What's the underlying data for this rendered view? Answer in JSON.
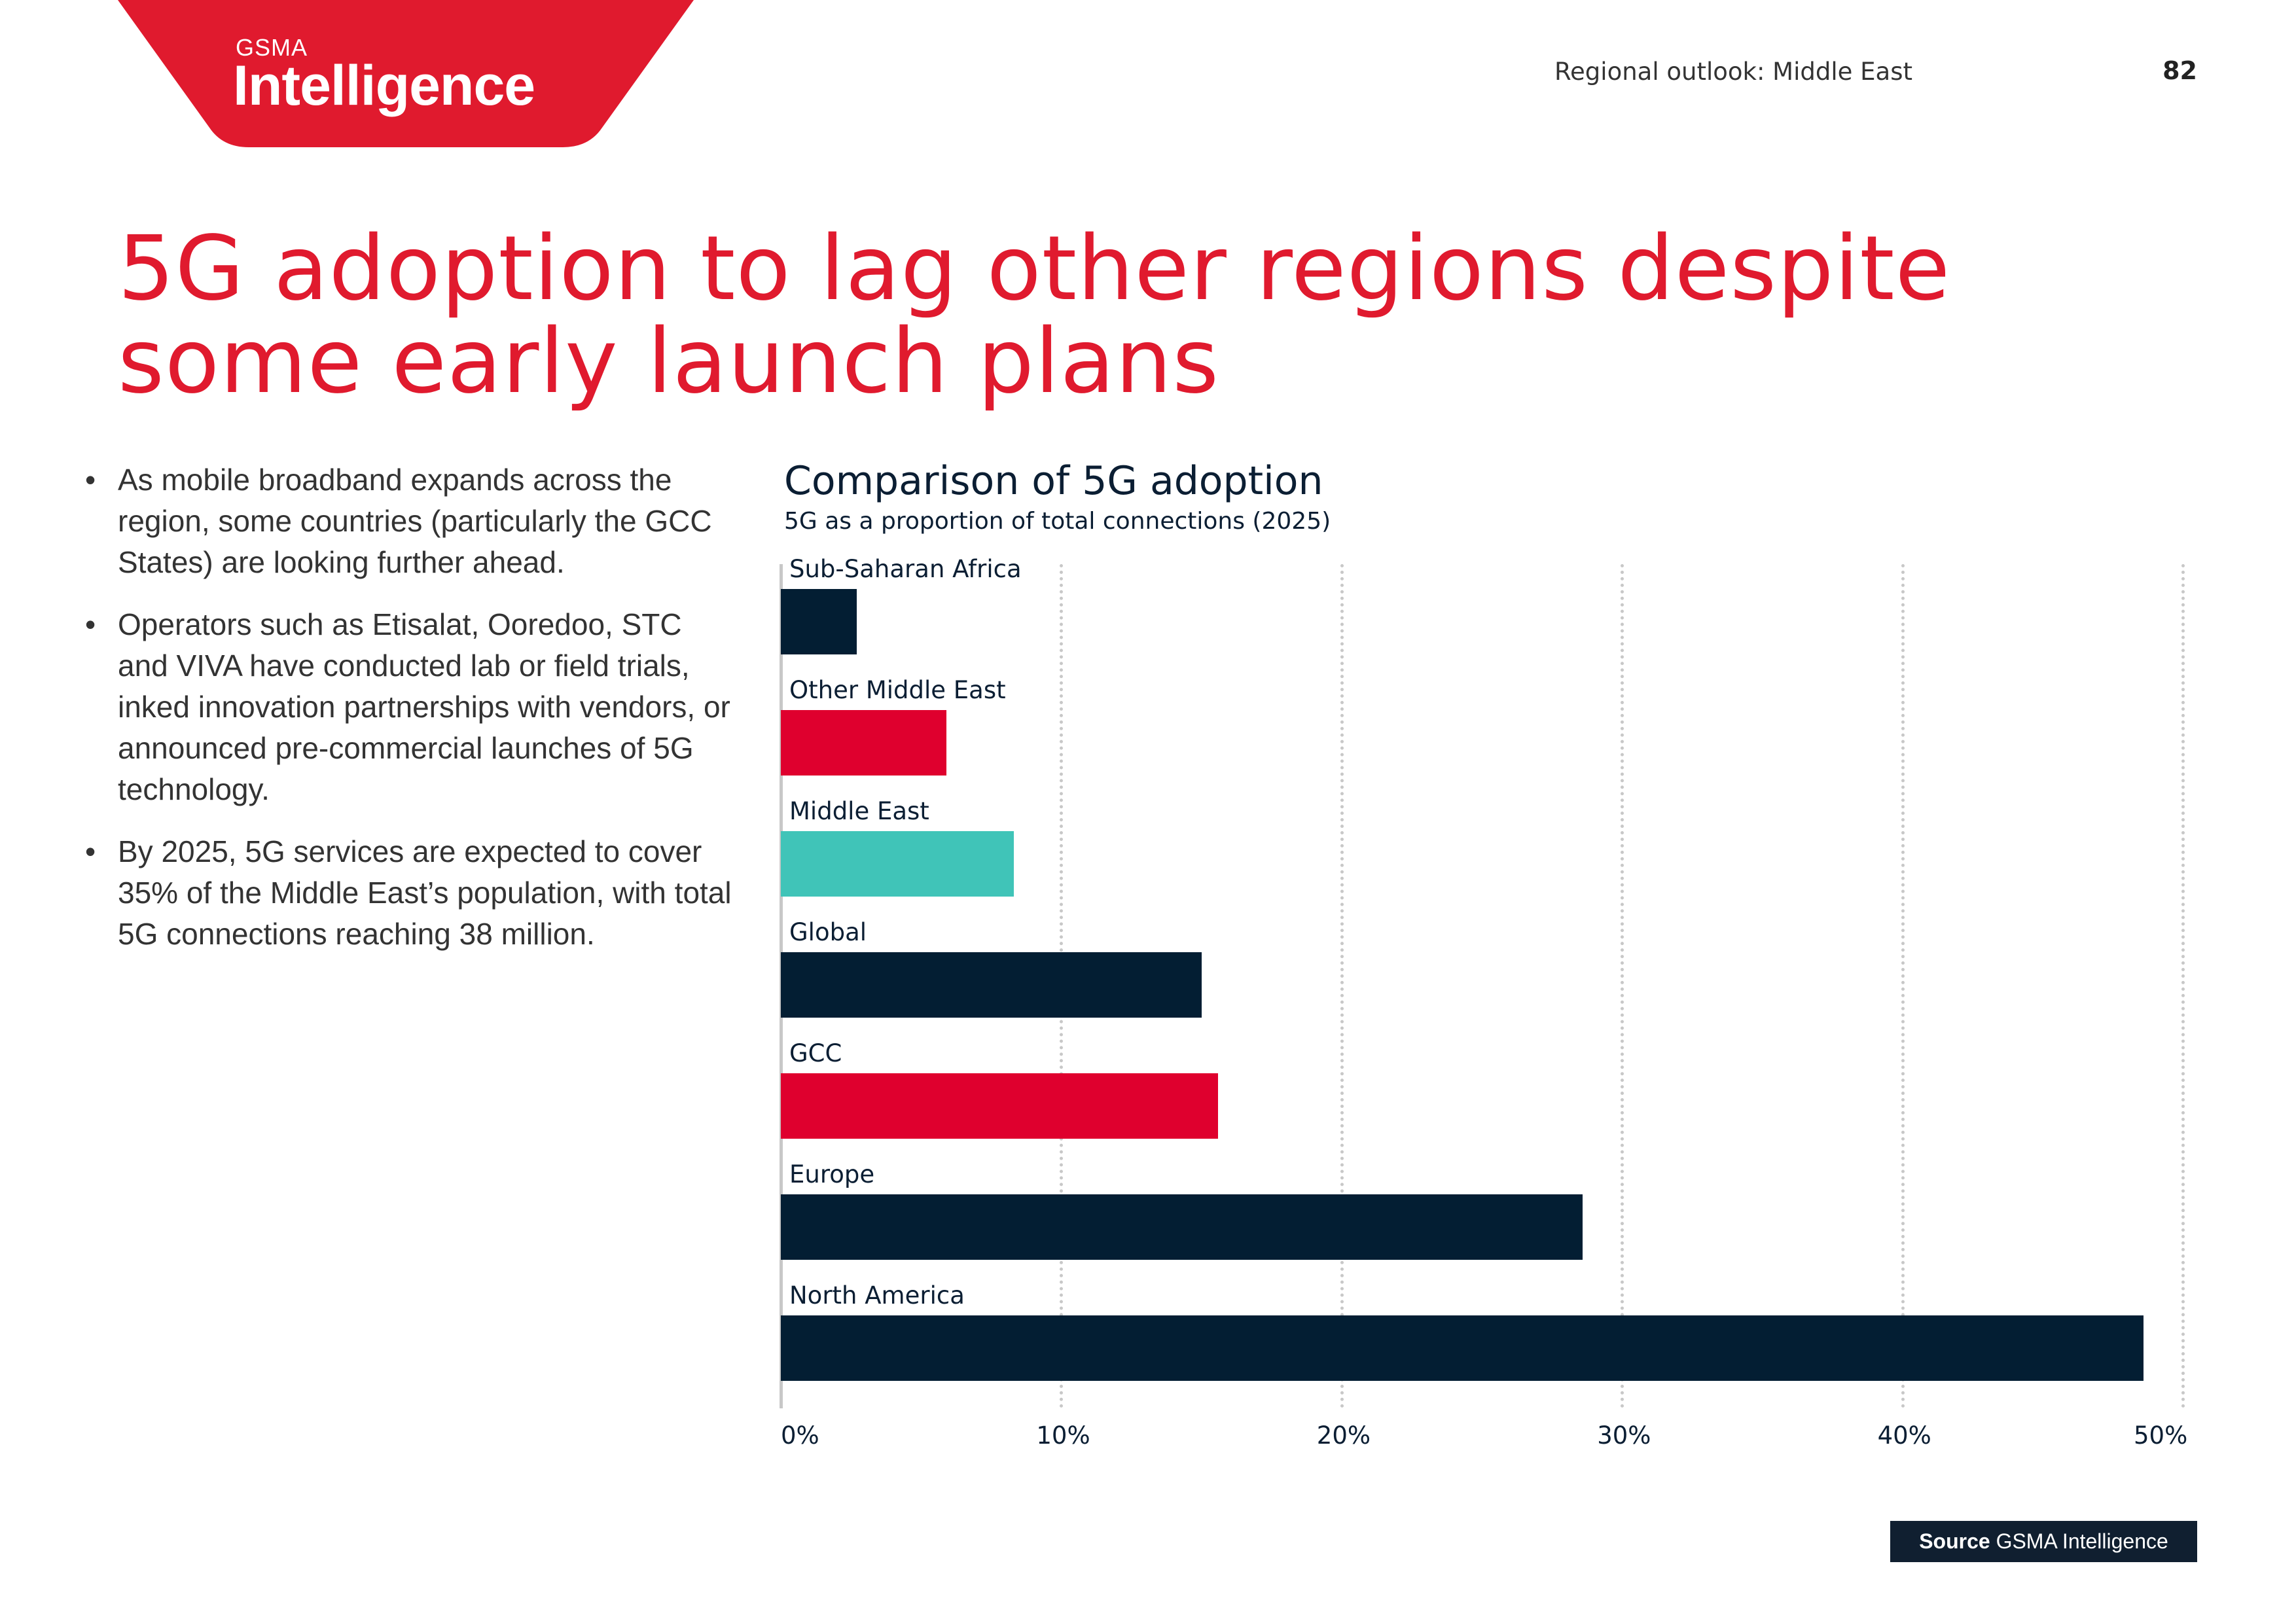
{
  "logo": {
    "line1": "GSMA",
    "line2": "Intelligence",
    "color": "#e01a2e"
  },
  "header": {
    "section": "Regional outlook: Middle East",
    "page_number": "82"
  },
  "title": "5G adoption to lag other regions despite some early launch plans",
  "bullets": [
    "As mobile broadband expands across the region, some countries (particularly the GCC States) are looking further ahead.",
    "Operators such as Etisalat, Ooredoo, STC and VIVA have conducted lab or field trials, inked innovation partnerships with vendors, or announced pre-commercial launches of 5G technology.",
    "By 2025, 5G services are expected to cover 35% of the Middle East’s population, with total 5G connections reaching 38 million."
  ],
  "bullet_glyph": "•",
  "chart_data": {
    "type": "bar",
    "orientation": "horizontal",
    "title": "Comparison of 5G adoption",
    "subtitle": "5G as a proportion of total connections (2025)",
    "categories": [
      "Sub-Saharan Africa",
      "Other Middle East",
      "Middle East",
      "Global",
      "GCC",
      "Europe",
      "North America"
    ],
    "values": [
      2.7,
      5.9,
      8.3,
      15.0,
      15.6,
      28.6,
      48.6
    ],
    "colors": [
      "#031e33",
      "#df002e",
      "#40c4b8",
      "#031e33",
      "#df002e",
      "#031e33",
      "#031e33"
    ],
    "xlim": [
      0,
      50
    ],
    "xticks": [
      "0%",
      "10%",
      "20%",
      "30%",
      "40%",
      "50%"
    ],
    "xtick_values": [
      0,
      10,
      20,
      30,
      40,
      50
    ],
    "unit": "%",
    "grid": "vertical dotted",
    "legend": "none"
  },
  "source": {
    "label": "Source",
    "text": "GSMA Intelligence"
  }
}
